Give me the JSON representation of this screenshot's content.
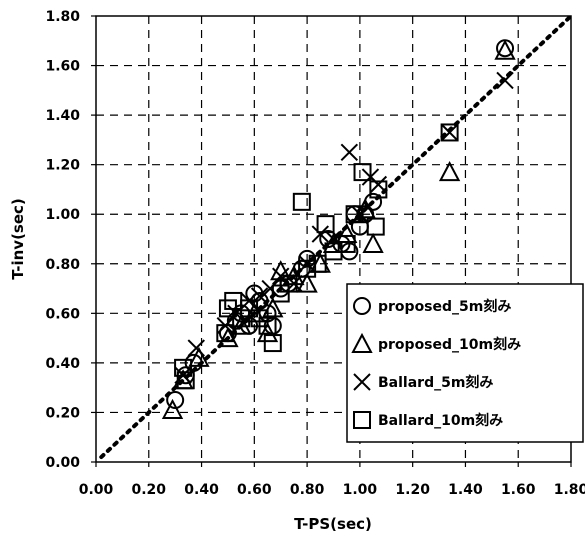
{
  "chart_data": {
    "type": "scatter",
    "title": "",
    "xlabel": "T-PS(sec)",
    "ylabel": "T-inv(sec)",
    "xlim": [
      0,
      1.8
    ],
    "ylim": [
      0,
      1.8
    ],
    "x_ticks": [
      "0.00",
      "0.20",
      "0.40",
      "0.60",
      "0.80",
      "1.00",
      "1.20",
      "1.40",
      "1.60",
      "1.80"
    ],
    "y_ticks": [
      "0.00",
      "0.20",
      "0.40",
      "0.60",
      "0.80",
      "1.00",
      "1.20",
      "1.40",
      "1.60",
      "1.80"
    ],
    "grid": true,
    "legend_position": "bottom-right",
    "reference_line": {
      "style": "dotted",
      "from": [
        0.02,
        0.02
      ],
      "to": [
        1.8,
        1.8
      ]
    },
    "series": [
      {
        "name": "proposed_5m刻み",
        "marker": "circle",
        "points": [
          [
            0.3,
            0.25
          ],
          [
            0.34,
            0.35
          ],
          [
            0.37,
            0.4
          ],
          [
            0.5,
            0.52
          ],
          [
            0.53,
            0.57
          ],
          [
            0.55,
            0.6
          ],
          [
            0.58,
            0.55
          ],
          [
            0.6,
            0.68
          ],
          [
            0.62,
            0.65
          ],
          [
            0.65,
            0.6
          ],
          [
            0.67,
            0.55
          ],
          [
            0.7,
            0.7
          ],
          [
            0.73,
            0.72
          ],
          [
            0.78,
            0.78
          ],
          [
            0.8,
            0.82
          ],
          [
            0.88,
            0.9
          ],
          [
            0.93,
            0.88
          ],
          [
            0.96,
            0.85
          ],
          [
            0.98,
            1.0
          ],
          [
            1.0,
            0.95
          ],
          [
            1.02,
            1.0
          ],
          [
            1.05,
            1.05
          ],
          [
            1.55,
            1.67
          ]
        ]
      },
      {
        "name": "proposed_10m刻み",
        "marker": "triangle",
        "points": [
          [
            0.29,
            0.21
          ],
          [
            0.33,
            0.33
          ],
          [
            0.39,
            0.42
          ],
          [
            0.5,
            0.5
          ],
          [
            0.55,
            0.55
          ],
          [
            0.6,
            0.6
          ],
          [
            0.65,
            0.52
          ],
          [
            0.67,
            0.62
          ],
          [
            0.7,
            0.77
          ],
          [
            0.75,
            0.75
          ],
          [
            0.8,
            0.72
          ],
          [
            0.85,
            0.8
          ],
          [
            0.9,
            0.88
          ],
          [
            0.95,
            0.92
          ],
          [
            1.02,
            1.02
          ],
          [
            1.05,
            0.88
          ],
          [
            1.34,
            1.17
          ],
          [
            1.55,
            1.66
          ]
        ]
      },
      {
        "name": "Ballard_5m刻み",
        "marker": "x",
        "points": [
          [
            0.33,
            0.35
          ],
          [
            0.38,
            0.46
          ],
          [
            0.49,
            0.55
          ],
          [
            0.53,
            0.6
          ],
          [
            0.58,
            0.65
          ],
          [
            0.62,
            0.67
          ],
          [
            0.66,
            0.7
          ],
          [
            0.7,
            0.75
          ],
          [
            0.75,
            0.72
          ],
          [
            0.8,
            0.8
          ],
          [
            0.85,
            0.92
          ],
          [
            0.9,
            0.9
          ],
          [
            0.96,
            1.25
          ],
          [
            1.0,
            1.0
          ],
          [
            1.04,
            1.15
          ],
          [
            1.07,
            1.12
          ],
          [
            1.34,
            1.33
          ],
          [
            1.55,
            1.54
          ]
        ]
      },
      {
        "name": "Ballard_10m刻み",
        "marker": "square",
        "points": [
          [
            0.33,
            0.38
          ],
          [
            0.34,
            0.33
          ],
          [
            0.49,
            0.52
          ],
          [
            0.5,
            0.62
          ],
          [
            0.52,
            0.65
          ],
          [
            0.55,
            0.58
          ],
          [
            0.58,
            0.62
          ],
          [
            0.62,
            0.58
          ],
          [
            0.65,
            0.55
          ],
          [
            0.67,
            0.48
          ],
          [
            0.7,
            0.68
          ],
          [
            0.73,
            0.72
          ],
          [
            0.78,
            1.05
          ],
          [
            0.8,
            0.78
          ],
          [
            0.84,
            0.8
          ],
          [
            0.87,
            0.96
          ],
          [
            0.9,
            0.85
          ],
          [
            0.95,
            0.88
          ],
          [
            0.98,
            1.0
          ],
          [
            1.01,
            1.17
          ],
          [
            1.06,
            0.95
          ],
          [
            1.07,
            1.1
          ],
          [
            1.34,
            1.33
          ]
        ]
      }
    ]
  }
}
